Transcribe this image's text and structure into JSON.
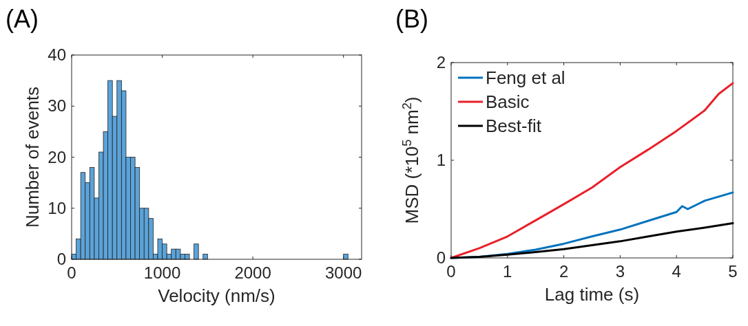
{
  "chart_data": [
    {
      "type": "histogram",
      "title": "(A)",
      "xlabel": "Velocity (nm/s)",
      "ylabel": "Number of events",
      "color": "#5ba3d9",
      "xlim": [
        0,
        3200
      ],
      "xticks": [
        0,
        1000,
        2000,
        3000
      ],
      "ylim": [
        0,
        40
      ],
      "yticks": [
        0,
        10,
        20,
        30,
        40
      ],
      "grid": false,
      "bins": [
        0,
        50,
        100,
        150,
        200,
        250,
        300,
        350,
        400,
        450,
        500,
        550,
        600,
        650,
        700,
        750,
        800,
        850,
        900,
        950,
        1000,
        1050,
        1100,
        1150,
        1200,
        1250,
        1300,
        1350,
        1400,
        1450,
        1500,
        1550,
        1600,
        1650,
        1700,
        1750,
        1800,
        1850,
        1900,
        1950,
        2000,
        2050,
        2100,
        2150,
        2200,
        2250,
        2300,
        2350,
        2400,
        2450,
        2500,
        2550,
        2600,
        2650,
        2700,
        2750,
        2800,
        2850,
        2900,
        2950,
        3000,
        3050
      ],
      "values": [
        1,
        4,
        17,
        15,
        18,
        12,
        21,
        25,
        35,
        28,
        35,
        33,
        20,
        20,
        18,
        10,
        10,
        8,
        1,
        4,
        3,
        1,
        2,
        2,
        1,
        1,
        0,
        3,
        0,
        1,
        0,
        0,
        0,
        0,
        0,
        0,
        0,
        0,
        0,
        0,
        0,
        0,
        0,
        0,
        0,
        0,
        0,
        0,
        0,
        0,
        0,
        0,
        0,
        0,
        0,
        0,
        0,
        0,
        0,
        0,
        1
      ]
    },
    {
      "type": "line",
      "title": "(B)",
      "xlabel": "Lag time (s)",
      "ylabel": "MSD (*10$^{5}$ nm$^{2}$)",
      "xlim": [
        0,
        5
      ],
      "xticks": [
        0,
        1,
        2,
        3,
        4,
        5
      ],
      "ylim": [
        0,
        2
      ],
      "yticks": [
        0,
        1,
        2
      ],
      "grid": false,
      "legend": "top left",
      "line_style": "solid",
      "marker": "none",
      "series": [
        {
          "name": "Feng et al",
          "color": "#0072bd",
          "x": [
            0,
            0.5,
            1,
            1.5,
            2,
            2.5,
            3,
            3.5,
            4,
            4.1,
            4.2,
            4.5,
            5
          ],
          "values": [
            0,
            0.01,
            0.04,
            0.085,
            0.145,
            0.22,
            0.29,
            0.38,
            0.47,
            0.53,
            0.5,
            0.585,
            0.67
          ]
        },
        {
          "name": "Basic",
          "color": "#e8202a",
          "x": [
            0,
            0.5,
            1,
            1.5,
            2,
            2.5,
            3,
            3.5,
            4,
            4.5,
            4.75,
            5
          ],
          "values": [
            0,
            0.1,
            0.22,
            0.385,
            0.55,
            0.72,
            0.93,
            1.11,
            1.3,
            1.51,
            1.68,
            1.79
          ]
        },
        {
          "name": "Best-fit",
          "color": "#000000",
          "x": [
            0,
            0.5,
            1,
            1.5,
            2,
            2.5,
            3,
            3.5,
            4,
            4.5,
            5
          ],
          "values": [
            0,
            0.01,
            0.033,
            0.06,
            0.09,
            0.13,
            0.17,
            0.22,
            0.27,
            0.31,
            0.355
          ]
        }
      ]
    }
  ]
}
